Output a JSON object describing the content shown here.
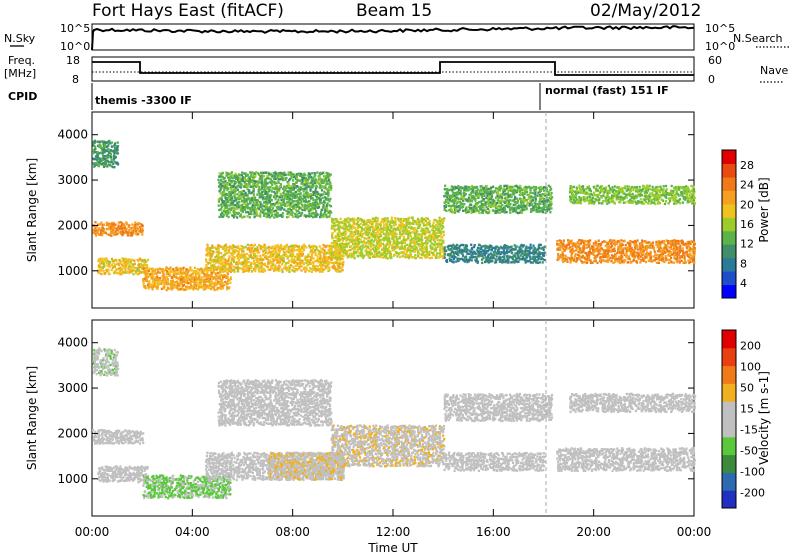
{
  "header": {
    "station": "Fort Hays East (fitACF)",
    "beam": "Beam 15",
    "date": "02/May/2012"
  },
  "status_panels": {
    "nsky_label": "N.Sky",
    "nsky_ticks": [
      "10^5",
      "10^0"
    ],
    "nsearch_label": "N.Search",
    "nsearch_ticks": [
      "10^5",
      "10^0"
    ],
    "freq_label_line1": "Freq.",
    "freq_label_line2": "[MHz]",
    "freq_ticks": [
      "18",
      "8"
    ],
    "nave_label": "Nave",
    "nave_ticks": [
      "60",
      "0"
    ],
    "cpid_label": "CPID",
    "cpid_modes": [
      "themis -3300 IF",
      "normal (fast) 151 IF"
    ]
  },
  "colors": {
    "power_scale": [
      "#0000ff",
      "#1e4fc8",
      "#2c7a9a",
      "#3f8f6a",
      "#5bb34a",
      "#9ccc2a",
      "#f0c21e",
      "#f5a020",
      "#f07a18",
      "#e84a10",
      "#e00000"
    ],
    "velocity_scale": [
      "#2030c0",
      "#2e6ab0",
      "#3c8a3c",
      "#5ac83c",
      "#c0c0c0",
      "#c0c0c0",
      "#f0b020",
      "#f07a18",
      "#e84010",
      "#e00000"
    ]
  },
  "chart_data": [
    {
      "type": "heatmap",
      "title": "Power",
      "xlabel": "",
      "ylabel": "Slant Range [km]",
      "x_ticks": [
        "00:00",
        "04:00",
        "08:00",
        "12:00",
        "16:00",
        "20:00",
        "00:00"
      ],
      "y_ticks": [
        "1000",
        "2000",
        "3000",
        "4000"
      ],
      "xlim": [
        0,
        24
      ],
      "ylim": [
        180,
        4500
      ],
      "colorbar": {
        "label": "Power [dB]",
        "ticks": [
          "28",
          "24",
          "20",
          "16",
          "12",
          "8",
          "4"
        ],
        "range": [
          0,
          30
        ]
      },
      "bands": [
        {
          "x": [
            0.0,
            2.0
          ],
          "y": [
            1800,
            2100
          ],
          "value": 22
        },
        {
          "x": [
            0.2,
            2.2
          ],
          "y": [
            950,
            1300
          ],
          "value": 18
        },
        {
          "x": [
            2.0,
            5.5
          ],
          "y": [
            600,
            1100
          ],
          "value": 20
        },
        {
          "x": [
            4.5,
            10.0
          ],
          "y": [
            1000,
            1600
          ],
          "value": 18
        },
        {
          "x": [
            5.0,
            9.5
          ],
          "y": [
            2200,
            3200
          ],
          "value": 12
        },
        {
          "x": [
            9.5,
            14.0
          ],
          "y": [
            1300,
            2200
          ],
          "value": 16
        },
        {
          "x": [
            14.0,
            18.3
          ],
          "y": [
            2300,
            2900
          ],
          "value": 12
        },
        {
          "x": [
            14.0,
            18.0
          ],
          "y": [
            1200,
            1600
          ],
          "value": 8
        },
        {
          "x": [
            18.5,
            24.0
          ],
          "y": [
            1200,
            1700
          ],
          "value": 22
        },
        {
          "x": [
            19.0,
            24.0
          ],
          "y": [
            2500,
            2900
          ],
          "value": 14
        },
        {
          "x": [
            0.0,
            1.0
          ],
          "y": [
            3300,
            3900
          ],
          "value": 10
        }
      ]
    },
    {
      "type": "heatmap",
      "title": "Velocity",
      "xlabel": "Time UT",
      "ylabel": "Slant Range [km]",
      "x_ticks": [
        "00:00",
        "04:00",
        "08:00",
        "12:00",
        "16:00",
        "20:00",
        "00:00"
      ],
      "y_ticks": [
        "1000",
        "2000",
        "3000",
        "4000"
      ],
      "xlim": [
        0,
        24
      ],
      "ylim": [
        180,
        4500
      ],
      "colorbar": {
        "label": "Velocity [m s-1]",
        "ticks": [
          "200",
          "100",
          "50",
          "15",
          "-15",
          "-50",
          "-100",
          "-200"
        ],
        "range": [
          -250,
          250
        ]
      },
      "bands": [
        {
          "x": [
            0.0,
            2.0
          ],
          "y": [
            1800,
            2100
          ],
          "value": 0
        },
        {
          "x": [
            0.2,
            2.2
          ],
          "y": [
            950,
            1300
          ],
          "value": 0
        },
        {
          "x": [
            2.0,
            5.5
          ],
          "y": [
            600,
            1100
          ],
          "value": -60
        },
        {
          "x": [
            4.5,
            10.0
          ],
          "y": [
            1000,
            1600
          ],
          "value": 0
        },
        {
          "x": [
            7.0,
            10.0
          ],
          "y": [
            1000,
            1600
          ],
          "value": 40
        },
        {
          "x": [
            5.0,
            9.5
          ],
          "y": [
            2200,
            3200
          ],
          "value": 0
        },
        {
          "x": [
            9.5,
            14.0
          ],
          "y": [
            1300,
            2200
          ],
          "value": 30
        },
        {
          "x": [
            14.0,
            18.3
          ],
          "y": [
            2300,
            2900
          ],
          "value": 0
        },
        {
          "x": [
            14.0,
            18.0
          ],
          "y": [
            1200,
            1600
          ],
          "value": 0
        },
        {
          "x": [
            18.5,
            24.0
          ],
          "y": [
            1200,
            1700
          ],
          "value": 0
        },
        {
          "x": [
            19.0,
            24.0
          ],
          "y": [
            2500,
            2900
          ],
          "value": 0
        },
        {
          "x": [
            0.0,
            1.0
          ],
          "y": [
            3300,
            3900
          ],
          "value": -30
        }
      ]
    }
  ]
}
